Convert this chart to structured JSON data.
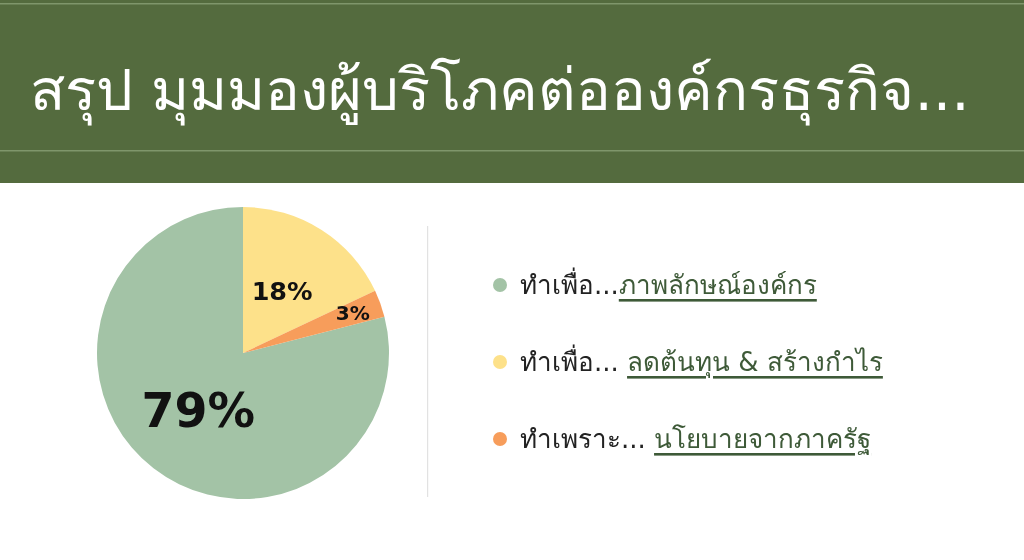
{
  "chart_data": {
    "type": "pie",
    "title": "สรุป มุมมองผู้บริโภคต่อองค์กรธุรกิจ...",
    "categories": [
      "ทำเพื่อ...ภาพลักษณ์องค์กร",
      "ทำเพื่อ... ลดต้นทุน & สร้างกำไร",
      "ทำเพราะ... นโยบายจากภาครัฐ"
    ],
    "values": [
      79,
      18,
      3
    ],
    "colors": [
      "#a3c3a6",
      "#fde18a",
      "#f79d5b"
    ],
    "value_labels": [
      "79%",
      "18%",
      "3%"
    ],
    "legend": "right"
  }
}
